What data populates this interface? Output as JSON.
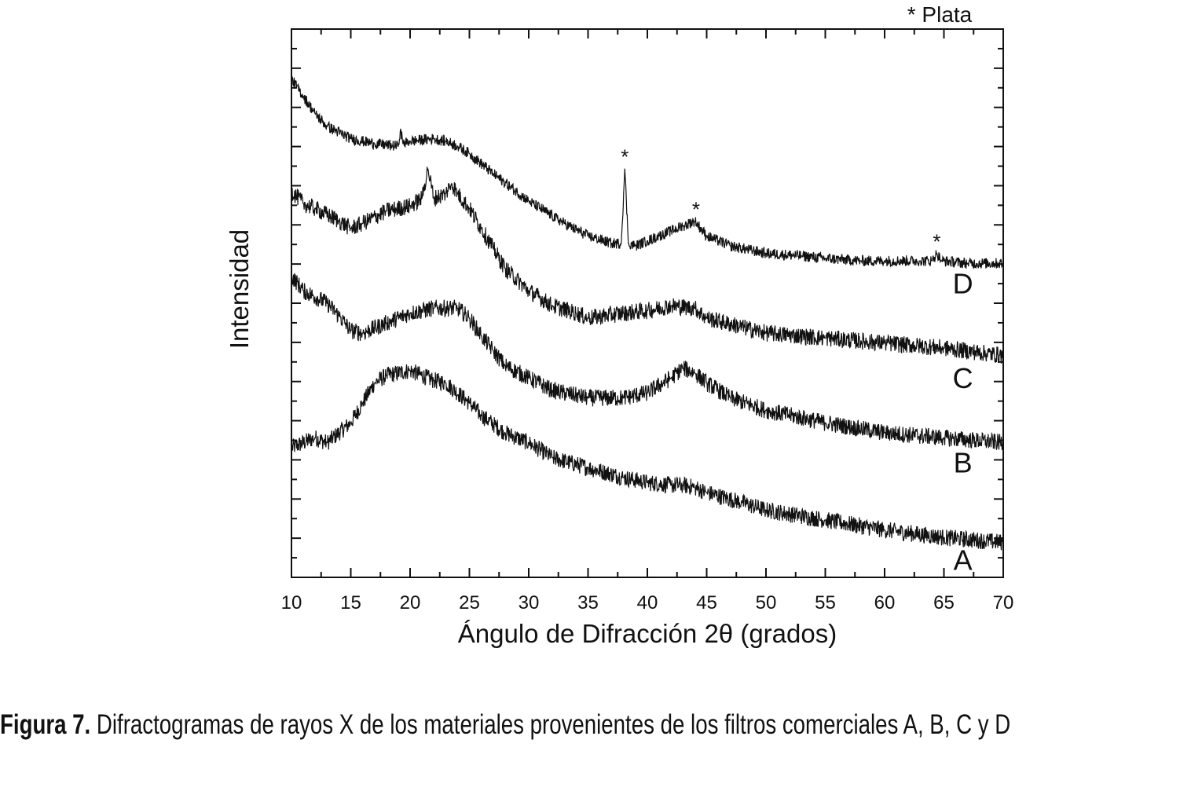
{
  "chart_data": {
    "type": "line",
    "xlabel": "Ángulo de Difracción 2θ (grados)",
    "ylabel": "Intensidad",
    "xlim": [
      10,
      70
    ],
    "x_ticks": [
      10,
      15,
      20,
      25,
      30,
      35,
      40,
      45,
      50,
      55,
      60,
      65,
      70
    ],
    "y_ticks_labeled": false,
    "annotation": "* Plata",
    "series": [
      {
        "name": "A",
        "points": [
          [
            10,
            52
          ],
          [
            12,
            56
          ],
          [
            13,
            54
          ],
          [
            15,
            62
          ],
          [
            16,
            70
          ],
          [
            17,
            78
          ],
          [
            18,
            81
          ],
          [
            20,
            83
          ],
          [
            22,
            79
          ],
          [
            23,
            78
          ],
          [
            25,
            70
          ],
          [
            26,
            65
          ],
          [
            28,
            58
          ],
          [
            30,
            54
          ],
          [
            32,
            48
          ],
          [
            35,
            44
          ],
          [
            38,
            40
          ],
          [
            40,
            38
          ],
          [
            42,
            37
          ],
          [
            43,
            37
          ],
          [
            44,
            36
          ],
          [
            45,
            34
          ],
          [
            48,
            30
          ],
          [
            50,
            27
          ],
          [
            55,
            23
          ],
          [
            60,
            19
          ],
          [
            65,
            16
          ],
          [
            70,
            14
          ]
        ]
      },
      {
        "name": "B",
        "points": [
          [
            10,
            121
          ],
          [
            11,
            115
          ],
          [
            13,
            110
          ],
          [
            14,
            105
          ],
          [
            15,
            99
          ],
          [
            16,
            98
          ],
          [
            18,
            102
          ],
          [
            20,
            106
          ],
          [
            22,
            108
          ],
          [
            24,
            108
          ],
          [
            25,
            104
          ],
          [
            26,
            97
          ],
          [
            27,
            91
          ],
          [
            28,
            85
          ],
          [
            30,
            80
          ],
          [
            32,
            75
          ],
          [
            35,
            72
          ],
          [
            38,
            72
          ],
          [
            40,
            74
          ],
          [
            42,
            80
          ],
          [
            43,
            84
          ],
          [
            44,
            82
          ],
          [
            45,
            78
          ],
          [
            47,
            72
          ],
          [
            50,
            67
          ],
          [
            55,
            62
          ],
          [
            60,
            58
          ],
          [
            65,
            56
          ],
          [
            70,
            54
          ]
        ]
      },
      {
        "name": "C",
        "points": [
          [
            10,
            155
          ],
          [
            11,
            150
          ],
          [
            12,
            148
          ],
          [
            14,
            143
          ],
          [
            15,
            140
          ],
          [
            16,
            142
          ],
          [
            18,
            147
          ],
          [
            20,
            149
          ],
          [
            21,
            152
          ],
          [
            21.5,
            164
          ],
          [
            22,
            152
          ],
          [
            23,
            154
          ],
          [
            23.5,
            158
          ],
          [
            24,
            154
          ],
          [
            25,
            148
          ],
          [
            26,
            140
          ],
          [
            27,
            132
          ],
          [
            28,
            124
          ],
          [
            30,
            115
          ],
          [
            32,
            109
          ],
          [
            34,
            106
          ],
          [
            35,
            104
          ],
          [
            38,
            106
          ],
          [
            40,
            107
          ],
          [
            42,
            109
          ],
          [
            44,
            108
          ],
          [
            45,
            104
          ],
          [
            50,
            98
          ],
          [
            55,
            96
          ],
          [
            60,
            94
          ],
          [
            65,
            92
          ],
          [
            70,
            89
          ]
        ]
      },
      {
        "name": "D",
        "points": [
          [
            10,
            200
          ],
          [
            11,
            193
          ],
          [
            12,
            186
          ],
          [
            13,
            181
          ],
          [
            15,
            176
          ],
          [
            17,
            174
          ],
          [
            19,
            173
          ],
          [
            19.2,
            180
          ],
          [
            19.4,
            174
          ],
          [
            20,
            175
          ],
          [
            22,
            176
          ],
          [
            23,
            175
          ],
          [
            24,
            173
          ],
          [
            25,
            170
          ],
          [
            27,
            162
          ],
          [
            30,
            151
          ],
          [
            33,
            142
          ],
          [
            35,
            137
          ],
          [
            37,
            134
          ],
          [
            37.8,
            134
          ],
          [
            38.1,
            164
          ],
          [
            38.4,
            134
          ],
          [
            39,
            133
          ],
          [
            40,
            135
          ],
          [
            41,
            137
          ],
          [
            42,
            139
          ],
          [
            43,
            141
          ],
          [
            44,
            143
          ],
          [
            45,
            137
          ],
          [
            47,
            133
          ],
          [
            50,
            130
          ],
          [
            53,
            129
          ],
          [
            55,
            128
          ],
          [
            58,
            127
          ],
          [
            60,
            127
          ],
          [
            63,
            127
          ],
          [
            64,
            127
          ],
          [
            64.4,
            130
          ],
          [
            64.8,
            127
          ],
          [
            67,
            126
          ],
          [
            70,
            126
          ]
        ]
      }
    ],
    "peak_markers": [
      {
        "series": "D",
        "x": 38.1,
        "y": 164,
        "label": "*"
      },
      {
        "series": "D",
        "x": 44.1,
        "y": 143,
        "label": "*"
      },
      {
        "series": "D",
        "x": 64.4,
        "y": 130,
        "label": "*"
      }
    ],
    "series_labels": [
      {
        "series": "D",
        "text": "D",
        "x": 66.6,
        "y": 114
      },
      {
        "series": "C",
        "text": "C",
        "x": 66.6,
        "y": 76
      },
      {
        "series": "B",
        "text": "B",
        "x": 66.6,
        "y": 42
      },
      {
        "series": "A",
        "text": "A",
        "x": 66.6,
        "y": 3
      }
    ]
  },
  "caption": {
    "label": "Figura 7.",
    "text": " Difractogramas de rayos X de los materiales provenientes de los filtros comerciales A, B, C y D"
  }
}
